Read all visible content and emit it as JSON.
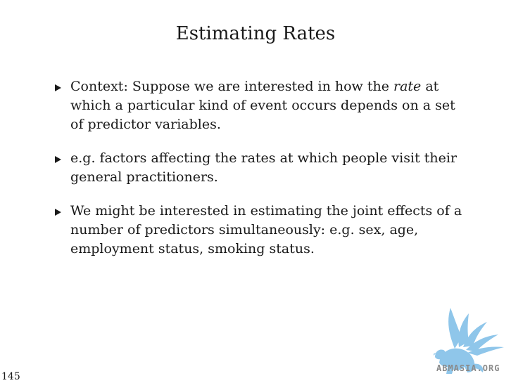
{
  "slide": {
    "title": "Estimating Rates",
    "page_number": "145"
  },
  "bullets": [
    {
      "before": "Context: Suppose we are interested in how the ",
      "emphasis": "rate",
      "after": " at which a particular kind of event occurs depends on a set of predictor variables."
    },
    {
      "text": "e.g. factors affecting the rates at which people visit their general practitioners."
    },
    {
      "text": "We might be interested in estimating the joint effects of a number of predictors simultaneously: e.g. sex, age, employment status, smoking status."
    }
  ],
  "logo": {
    "text": "ABMASIA.ORG",
    "icon": "griffin-logo-icon",
    "color": "#8fc6ea"
  },
  "colors": {
    "text": "#1a1a1a",
    "background": "#ffffff"
  }
}
